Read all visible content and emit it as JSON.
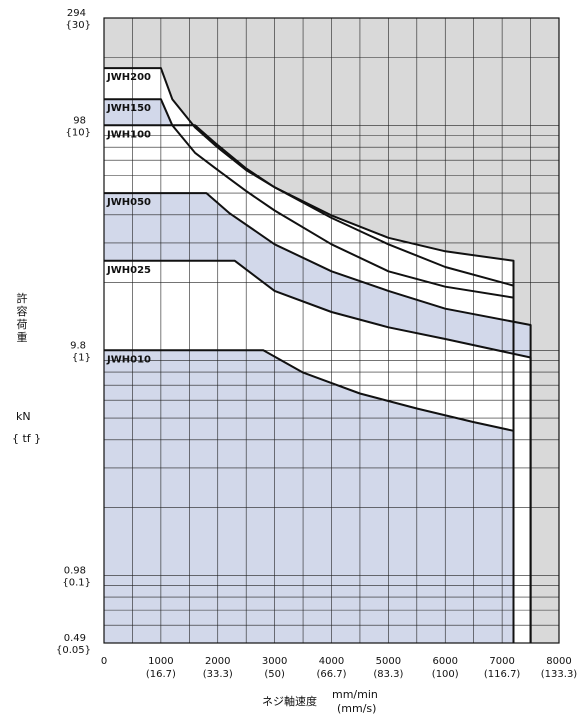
{
  "chart_data": {
    "type": "line",
    "title": "",
    "ylabel_chars": [
      "許",
      "容",
      "荷",
      "重"
    ],
    "y_unit": "kN",
    "y_unit_alt": "{ tf }",
    "xlabel": "ネジ軸速度",
    "x_unit": "mm/min",
    "x_unit_alt": "(mm/s)",
    "y_scale": "log",
    "xlim": [
      0,
      8000
    ],
    "ylim": [
      0.49,
      294
    ],
    "x_ticks": [
      {
        "value": 0,
        "label": "0",
        "sub": ""
      },
      {
        "value": 1000,
        "label": "1000",
        "sub": "(16.7)"
      },
      {
        "value": 2000,
        "label": "2000",
        "sub": "(33.3)"
      },
      {
        "value": 3000,
        "label": "3000",
        "sub": "(50)"
      },
      {
        "value": 4000,
        "label": "4000",
        "sub": "(66.7)"
      },
      {
        "value": 5000,
        "label": "5000",
        "sub": "(83.3)"
      },
      {
        "value": 6000,
        "label": "6000",
        "sub": "(100)"
      },
      {
        "value": 7000,
        "label": "7000",
        "sub": "(116.7)"
      },
      {
        "value": 8000,
        "label": "8000",
        "sub": "(133.3)"
      }
    ],
    "y_ticks": [
      {
        "value": 294,
        "label": "294",
        "sub": "{30}"
      },
      {
        "value": 98,
        "label": "98",
        "sub": "{10}"
      },
      {
        "value": 9.8,
        "label": "9.8",
        "sub": "{1}"
      },
      {
        "value": 0.98,
        "label": "0.98",
        "sub": "{0.1}"
      },
      {
        "value": 0.49,
        "label": "0.49",
        "sub": "{0.05}"
      }
    ],
    "series": [
      {
        "name": "JWH200",
        "points": [
          [
            0,
            176
          ],
          [
            1000,
            176
          ],
          [
            1200,
            128
          ],
          [
            1600,
            96
          ],
          [
            2000,
            78
          ],
          [
            2500,
            62
          ],
          [
            3000,
            52
          ],
          [
            4000,
            39
          ],
          [
            5000,
            31
          ],
          [
            6000,
            27
          ],
          [
            7200,
            24.5
          ],
          [
            7200,
            0.49
          ]
        ]
      },
      {
        "name": "JWH150",
        "points": [
          [
            0,
            128
          ],
          [
            1000,
            128
          ],
          [
            1200,
            98
          ],
          [
            1600,
            74
          ],
          [
            2000,
            62
          ],
          [
            2500,
            50
          ],
          [
            3000,
            41
          ],
          [
            4000,
            29
          ],
          [
            5000,
            22
          ],
          [
            6000,
            18.8
          ],
          [
            7200,
            16.8
          ],
          [
            7200,
            0.49
          ]
        ]
      },
      {
        "name": "JWH100",
        "points": [
          [
            0,
            98
          ],
          [
            1600,
            98
          ],
          [
            2000,
            80
          ],
          [
            2500,
            63
          ],
          [
            3000,
            52
          ],
          [
            4000,
            38
          ],
          [
            5000,
            29
          ],
          [
            6000,
            23
          ],
          [
            7200,
            19
          ],
          [
            7200,
            0.49
          ]
        ]
      },
      {
        "name": "JWH050",
        "points": [
          [
            0,
            49
          ],
          [
            1800,
            49
          ],
          [
            2200,
            40
          ],
          [
            3000,
            29
          ],
          [
            4000,
            22
          ],
          [
            5000,
            18
          ],
          [
            6000,
            15
          ],
          [
            7500,
            12.7
          ],
          [
            7500,
            0.49
          ]
        ]
      },
      {
        "name": "JWH025",
        "points": [
          [
            0,
            24.5
          ],
          [
            2300,
            24.5
          ],
          [
            3000,
            18
          ],
          [
            4000,
            14.5
          ],
          [
            5000,
            12.4
          ],
          [
            6000,
            11
          ],
          [
            7500,
            9.1
          ],
          [
            7500,
            0.49
          ]
        ]
      },
      {
        "name": "JWH010",
        "points": [
          [
            0,
            9.8
          ],
          [
            2800,
            9.8
          ],
          [
            3500,
            7.8
          ],
          [
            4500,
            6.3
          ],
          [
            5500,
            5.4
          ],
          [
            6500,
            4.7
          ],
          [
            7200,
            4.3
          ],
          [
            7200,
            0.49
          ]
        ]
      }
    ]
  }
}
